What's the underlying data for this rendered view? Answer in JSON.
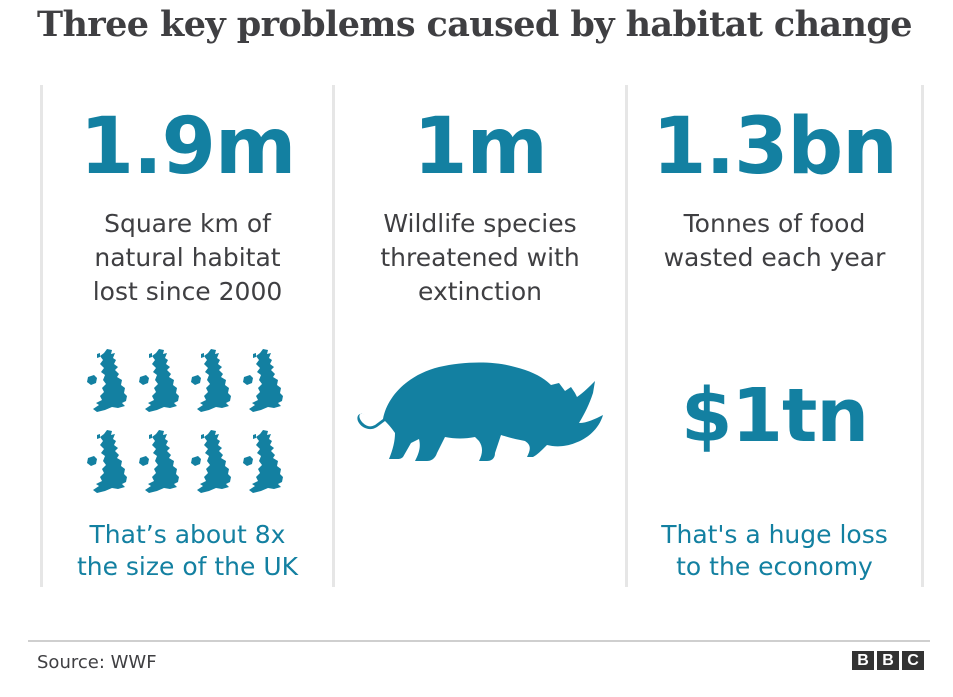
{
  "title": "Three key problems caused by habitat change",
  "stats": [
    {
      "figure": "1.9m",
      "description": [
        "Square km of",
        "natural habitat",
        "lost since 2000"
      ],
      "note": [
        "That’s about 8x",
        "the size of the UK"
      ],
      "icon": "uk-map-icon",
      "icon_count": 8
    },
    {
      "figure": "1m",
      "description": [
        "Wildlife species",
        "threatened with",
        "extinction"
      ],
      "icon": "rhino-icon"
    },
    {
      "figure": "1.3bn",
      "description": [
        "Tonnes of food",
        "wasted each year"
      ],
      "secondary_figure": "$1tn",
      "note": [
        "That's a huge loss",
        "to the economy"
      ]
    }
  ],
  "source": "Source: WWF",
  "logo": [
    "B",
    "B",
    "C"
  ],
  "colors": {
    "accent": "#1380a1",
    "text": "#3f3f42",
    "divider": "#e6e6e6"
  }
}
